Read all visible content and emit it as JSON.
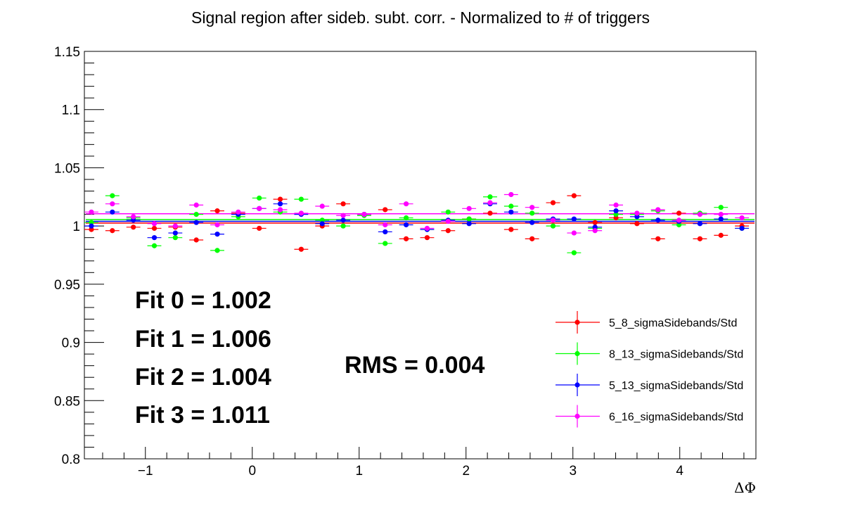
{
  "chart_data": {
    "type": "scatter",
    "title": "Signal region after sideb. subt. corr. - Normalized to # of triggers",
    "xlabel": "ΔΦ",
    "ylabel": "",
    "xlim": [
      -1.5708,
      4.7124
    ],
    "ylim": [
      0.8,
      1.15
    ],
    "x_ticks": [
      -1,
      0,
      1,
      2,
      3,
      4
    ],
    "x_tick_labels": [
      "−1",
      "0",
      "1",
      "2",
      "3",
      "4"
    ],
    "y_ticks": [
      0.8,
      0.85,
      0.9,
      0.95,
      1,
      1.05,
      1.1,
      1.15
    ],
    "y_tick_labels": [
      "0.8",
      "0.85",
      "0.9",
      "0.95",
      "1",
      "1.05",
      "1.1",
      "1.15"
    ],
    "grid": false,
    "legend_position": "right",
    "x": [
      -1.4399,
      -1.309,
      -1.0472,
      -0.9163,
      -0.7854,
      -0.6545,
      -0.5236,
      -0.3927,
      -0.2618,
      -0.1309,
      0.0,
      0.1309,
      0.2618,
      0.3927,
      0.6545,
      0.7854,
      0.9163,
      1.0472,
      1.1781,
      1.309,
      1.4399,
      1.5708,
      1.7017,
      1.8326,
      1.9635,
      2.0944,
      2.2253,
      2.3562,
      2.4871,
      2.618,
      2.7489,
      2.8798,
      3.0107,
      3.1416,
      3.2725,
      3.4034,
      3.5343,
      3.6652,
      3.7961,
      3.927,
      4.0579,
      4.1888,
      4.3197,
      4.4506,
      4.5815
    ],
    "series": [
      {
        "name": "5_8_sigmaSidebands/Std",
        "color": "#ff0000",
        "fit": 1.0025,
        "points": [
          [
            -1.5053,
            0.997
          ],
          [
            -1.309,
            0.996
          ],
          [
            -1.1126,
            0.999
          ],
          [
            -0.9163,
            0.998
          ],
          [
            -0.7199,
            0.999
          ],
          [
            -0.5236,
            0.988
          ],
          [
            -0.3272,
            1.013
          ],
          [
            -0.1309,
            1.011
          ],
          [
            0.0654,
            0.998
          ],
          [
            0.2618,
            1.023
          ],
          [
            0.4581,
            0.98
          ],
          [
            0.6545,
            1.0
          ],
          [
            0.8508,
            1.019
          ],
          [
            1.0472,
            1.01
          ],
          [
            1.2435,
            1.014
          ],
          [
            1.4399,
            0.989
          ],
          [
            1.6362,
            0.99
          ],
          [
            1.8326,
            0.996
          ],
          [
            2.0289,
            1.006
          ],
          [
            2.2253,
            1.011
          ],
          [
            2.4216,
            0.997
          ],
          [
            2.618,
            0.989
          ],
          [
            2.8143,
            1.02
          ],
          [
            3.0107,
            1.026
          ],
          [
            3.207,
            1.003
          ],
          [
            3.4034,
            1.007
          ],
          [
            3.5997,
            1.002
          ],
          [
            3.7961,
            0.989
          ],
          [
            3.9924,
            1.011
          ],
          [
            4.1888,
            0.989
          ],
          [
            4.3851,
            0.992
          ],
          [
            4.5815,
            1.0
          ]
        ]
      },
      {
        "name": "8_13_sigmaSidebands/Std",
        "color": "#00ff00",
        "fit": 1.0055,
        "points": [
          [
            -1.5053,
            1.003
          ],
          [
            -1.309,
            1.026
          ],
          [
            -1.1126,
            1.007
          ],
          [
            -0.9163,
            0.983
          ],
          [
            -0.7199,
            0.99
          ],
          [
            -0.5236,
            1.01
          ],
          [
            -0.3272,
            0.979
          ],
          [
            -0.1309,
            1.008
          ],
          [
            0.0654,
            1.024
          ],
          [
            0.2618,
            1.012
          ],
          [
            0.4581,
            1.023
          ],
          [
            0.6545,
            1.005
          ],
          [
            0.8508,
            1.0
          ],
          [
            1.0472,
            1.009
          ],
          [
            1.2435,
            0.985
          ],
          [
            1.4399,
            1.007
          ],
          [
            1.6362,
            0.997
          ],
          [
            1.8326,
            1.012
          ],
          [
            2.0289,
            1.006
          ],
          [
            2.2253,
            1.025
          ],
          [
            2.4216,
            1.017
          ],
          [
            2.618,
            1.011
          ],
          [
            2.8143,
            1.0
          ],
          [
            3.0107,
            0.977
          ],
          [
            3.207,
            0.998
          ],
          [
            3.4034,
            1.01
          ],
          [
            3.5997,
            1.01
          ],
          [
            3.7961,
            1.013
          ],
          [
            3.9924,
            1.001
          ],
          [
            4.1888,
            1.011
          ],
          [
            4.3851,
            1.016
          ],
          [
            4.5815,
            0.998
          ]
        ]
      },
      {
        "name": "5_13_sigmaSidebands/Std",
        "color": "#0000ff",
        "fit": 1.004,
        "points": [
          [
            -1.5053,
            1.0
          ],
          [
            -1.309,
            1.012
          ],
          [
            -1.1126,
            1.005
          ],
          [
            -0.9163,
            0.99
          ],
          [
            -0.7199,
            0.994
          ],
          [
            -0.5236,
            1.003
          ],
          [
            -0.3272,
            0.993
          ],
          [
            -0.1309,
            1.01
          ],
          [
            0.0654,
            1.015
          ],
          [
            0.2618,
            1.019
          ],
          [
            0.4581,
            1.01
          ],
          [
            0.6545,
            1.002
          ],
          [
            0.8508,
            1.005
          ],
          [
            1.0472,
            1.01
          ],
          [
            1.2435,
            0.995
          ],
          [
            1.4399,
            1.001
          ],
          [
            1.6362,
            0.997
          ],
          [
            1.8326,
            1.005
          ],
          [
            2.0289,
            1.002
          ],
          [
            2.2253,
            1.019
          ],
          [
            2.4216,
            1.012
          ],
          [
            2.618,
            1.003
          ],
          [
            2.8143,
            1.006
          ],
          [
            3.0107,
            1.006
          ],
          [
            3.207,
            0.999
          ],
          [
            3.4034,
            1.013
          ],
          [
            3.5997,
            1.008
          ],
          [
            3.7961,
            1.005
          ],
          [
            3.9924,
            1.004
          ],
          [
            4.1888,
            1.002
          ],
          [
            4.3851,
            1.006
          ],
          [
            4.5815,
            0.998
          ]
        ]
      },
      {
        "name": "6_16_sigmaSidebands/Std",
        "color": "#ff00ff",
        "fit": 1.0105,
        "points": [
          [
            -1.5053,
            1.012
          ],
          [
            -1.309,
            1.019
          ],
          [
            -1.1126,
            1.008
          ],
          [
            -0.9163,
            1.002
          ],
          [
            -0.7199,
            1.0
          ],
          [
            -0.5236,
            1.018
          ],
          [
            -0.3272,
            1.001
          ],
          [
            -0.1309,
            1.012
          ],
          [
            0.0654,
            1.015
          ],
          [
            0.2618,
            1.014
          ],
          [
            0.4581,
            1.011
          ],
          [
            0.6545,
            1.017
          ],
          [
            0.8508,
            1.009
          ],
          [
            1.0472,
            1.01
          ],
          [
            1.2435,
            1.001
          ],
          [
            1.4399,
            1.019
          ],
          [
            1.6362,
            0.998
          ],
          [
            1.8326,
            1.004
          ],
          [
            2.0289,
            1.015
          ],
          [
            2.2253,
            1.02
          ],
          [
            2.4216,
            1.027
          ],
          [
            2.618,
            1.016
          ],
          [
            2.8143,
            1.005
          ],
          [
            3.0107,
            0.994
          ],
          [
            3.207,
            0.996
          ],
          [
            3.4034,
            1.018
          ],
          [
            3.5997,
            1.011
          ],
          [
            3.7961,
            1.014
          ],
          [
            3.9924,
            1.005
          ],
          [
            4.1888,
            1.01
          ],
          [
            4.3851,
            1.01
          ],
          [
            4.5815,
            1.007
          ]
        ]
      }
    ],
    "x_error": 0.0654,
    "annotations": {
      "fits": [
        "Fit 0 = 1.002",
        "Fit 1 = 1.006",
        "Fit 2 = 1.004",
        "Fit 3 = 1.011"
      ],
      "rms": "RMS = 0.004"
    }
  }
}
